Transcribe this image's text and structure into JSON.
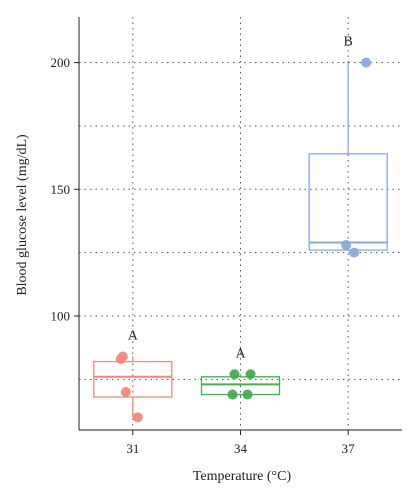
{
  "chart_data": {
    "type": "box",
    "title": "",
    "xlabel": "Temperature (°C)",
    "ylabel": "Blood glucose level (mg/dL)",
    "ylim": [
      55,
      218
    ],
    "yticks": [
      100,
      150,
      200
    ],
    "yticks_minor": [
      75,
      125,
      175
    ],
    "grid": true,
    "categories": [
      "31",
      "34",
      "37"
    ],
    "series": [
      {
        "category": "31",
        "color": "#ef8a7e",
        "box": {
          "whislo": 60,
          "q1": 68,
          "med": 76,
          "q3": 82,
          "whishi": 84
        },
        "points": [
          84,
          83,
          70,
          60
        ],
        "group_label": "A"
      },
      {
        "category": "34",
        "color": "#45ad52",
        "box": {
          "whislo": 68,
          "q1": 69,
          "med": 73,
          "q3": 76,
          "whishi": 77
        },
        "points": [
          77,
          77,
          69,
          69
        ],
        "group_label": "A"
      },
      {
        "category": "37",
        "color": "#88aadd",
        "box": {
          "whislo": 126,
          "q1": 126,
          "med": 129,
          "q3": 164,
          "whishi": 200
        },
        "points": [
          200,
          128,
          125
        ],
        "group_label": "B"
      }
    ]
  }
}
